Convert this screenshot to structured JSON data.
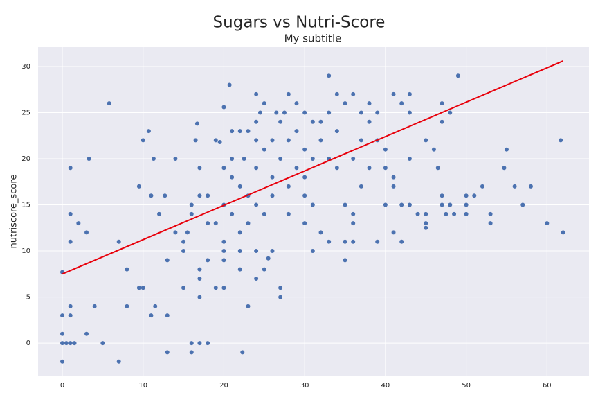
{
  "chart_data": {
    "type": "scatter",
    "title": "Sugars vs Nutri-Score",
    "subtitle": "My subtitle",
    "y_label": "nutriscore_score",
    "color": "#4c72b0",
    "grid": true,
    "xlim": [
      -3,
      65.2
    ],
    "ylim": [
      -3.6,
      32.1
    ],
    "xticks": [
      0,
      10,
      20,
      30,
      40,
      50,
      60
    ],
    "yticks": [
      0,
      5,
      10,
      15,
      20,
      25,
      30
    ],
    "x": [
      0,
      0,
      0,
      0,
      0,
      0.5,
      1,
      1.5,
      1,
      1,
      1,
      1,
      1,
      2,
      3,
      3,
      3.3,
      4,
      5,
      5.8,
      7,
      7,
      8,
      8,
      9.5,
      10,
      10,
      9.5,
      10.7,
      11,
      11,
      11.5,
      11.3,
      12,
      12.7,
      13,
      13,
      13,
      14,
      14,
      15,
      15,
      15,
      15.5,
      16,
      16,
      16,
      16,
      16.5,
      16.7,
      17,
      17,
      17,
      17,
      17,
      17,
      18,
      18,
      18,
      18,
      19,
      19,
      19,
      19.5,
      20,
      20,
      20,
      20,
      20,
      20,
      20,
      20.7,
      21,
      21,
      21,
      21,
      22,
      22,
      22,
      22,
      22,
      22.3,
      22.5,
      23,
      23,
      23,
      23,
      24,
      24,
      24,
      24,
      24,
      24,
      24,
      24.5,
      25,
      25,
      25,
      25,
      25.5,
      26,
      26,
      26,
      26,
      26.5,
      27,
      27,
      27,
      27,
      27.5,
      28,
      28,
      28,
      28,
      29,
      29,
      29,
      30,
      30,
      30,
      30,
      30,
      31,
      31,
      31,
      31,
      32,
      32,
      32,
      33,
      33,
      33,
      33,
      34,
      34,
      34,
      35,
      35,
      35,
      35,
      36,
      36,
      36,
      36,
      36,
      37,
      37,
      37,
      38,
      38,
      38,
      39,
      39,
      39,
      40,
      40,
      40,
      41,
      41,
      41,
      41,
      42,
      42,
      42,
      43,
      43,
      43,
      43,
      44,
      45,
      45,
      45,
      45,
      46,
      46.5,
      47,
      47,
      47,
      47,
      47.5,
      48,
      48,
      48.5,
      49,
      50,
      50,
      50,
      51,
      52,
      53,
      53,
      54.7,
      55,
      56,
      57,
      58,
      60,
      61.7,
      62
    ],
    "y": [
      -2,
      0,
      1,
      3,
      7.7,
      0,
      0,
      0,
      3,
      4,
      11,
      14,
      19,
      13,
      1,
      12,
      20,
      4,
      0,
      26,
      -2,
      11,
      4,
      8,
      17,
      6,
      22,
      6,
      23,
      16,
      3,
      4,
      20,
      14,
      16,
      -1,
      3,
      9,
      20,
      12,
      6,
      10,
      11,
      12,
      0,
      -1,
      14,
      15,
      22,
      23.8,
      19,
      16,
      5,
      7,
      8,
      0,
      0,
      9,
      16,
      13,
      6,
      13,
      22,
      21.8,
      6,
      10,
      15,
      25.6,
      19,
      9,
      11,
      28,
      23,
      20,
      18,
      14,
      23,
      17,
      12,
      8,
      10,
      -1,
      20,
      4,
      23,
      13,
      16,
      27,
      22,
      24,
      19,
      15,
      7,
      10,
      25,
      26,
      21,
      8,
      14,
      9.2,
      22,
      16,
      10,
      18,
      25,
      6,
      5,
      20,
      24,
      25,
      27,
      22,
      17,
      14,
      26,
      23,
      19,
      25,
      21,
      13,
      18,
      16,
      24,
      20,
      15,
      10,
      22,
      12,
      24,
      29,
      25,
      20,
      11,
      27,
      19,
      23,
      26,
      15,
      9,
      11,
      27,
      20,
      14,
      13,
      11,
      25,
      17,
      22,
      26,
      19,
      24,
      25,
      11,
      22,
      21,
      19,
      15,
      27,
      17,
      12,
      18,
      26,
      15,
      11,
      27,
      25,
      15,
      20,
      14,
      22,
      13,
      12.5,
      14,
      21,
      19,
      26,
      24,
      16,
      15,
      14,
      25,
      15,
      14,
      29,
      16,
      15,
      14,
      16,
      17,
      14,
      13,
      19,
      21,
      17,
      15,
      17,
      13,
      22,
      12
    ],
    "fit": {
      "x": [
        0,
        62
      ],
      "y": [
        7.5,
        30.6
      ],
      "color": "#e8000b"
    }
  }
}
